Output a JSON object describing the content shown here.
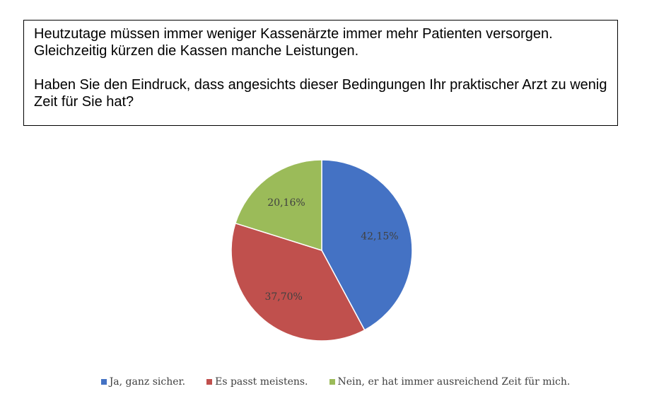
{
  "question": {
    "intro": "Heutzutage müssen immer weniger Kassenärzte immer mehr Patienten versorgen. Gleichzeitig kürzen die Kassen manche Leistungen.",
    "question": "Haben Sie den Eindruck, dass angesichts dieser Bedingungen Ihr praktischer Arzt zu wenig Zeit für Sie hat?"
  },
  "chart_data": {
    "type": "pie",
    "title": "",
    "categories": [
      "Ja, ganz sicher.",
      "Es passt meistens.",
      "Nein, er hat immer ausreichend Zeit für mich."
    ],
    "values": [
      42.15,
      37.7,
      20.16
    ],
    "labels": [
      "42,15%",
      "37,70%",
      "20,16%"
    ],
    "colors": [
      "#4472c4",
      "#c0504d",
      "#9bbb59"
    ],
    "legend_position": "bottom"
  }
}
